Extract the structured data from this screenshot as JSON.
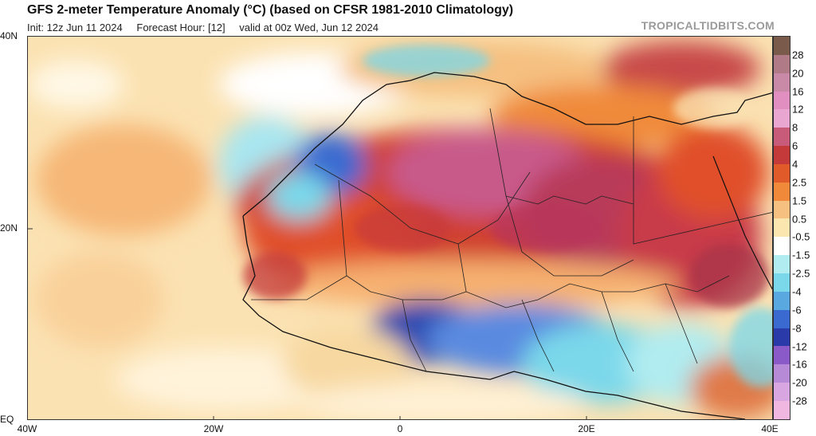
{
  "header": {
    "title": "GFS 2-meter Temperature Anomaly (°C) (based on CFSR 1981-2010 Climatology)",
    "init": "Init: 12z Jun 11 2024",
    "forecast_hour": "Forecast Hour: [12]",
    "valid": "valid at 00z Wed, Jun 12 2024",
    "brand": "TROPICALTIDBITS.COM"
  },
  "axes": {
    "lat_labels": [
      "40N",
      "20N",
      "EQ"
    ],
    "lon_labels": [
      "40W",
      "20W",
      "0",
      "20E",
      "40E"
    ]
  },
  "colorbar": {
    "labels": [
      "28",
      "20",
      "16",
      "12",
      "8",
      "6",
      "4",
      "2.5",
      "1.5",
      "0.5",
      "-0.5",
      "-1.5",
      "-2.5",
      "-4",
      "-6",
      "-8",
      "-12",
      "-16",
      "-20",
      "-28"
    ],
    "colors": [
      "#7a5a4a",
      "#b07a86",
      "#c98aa8",
      "#e08fc0",
      "#e9a6d0",
      "#c85a7a",
      "#c43a3a",
      "#e05a2a",
      "#f08a3a",
      "#f5c080",
      "#fbe6b0",
      "#ffffff",
      "#b0ecf0",
      "#7ad8ea",
      "#5aa8e0",
      "#3a6ad0",
      "#2a3aa8",
      "#8a5ac8",
      "#b78ad8",
      "#d8a6e0",
      "#f0b8e0"
    ]
  }
}
